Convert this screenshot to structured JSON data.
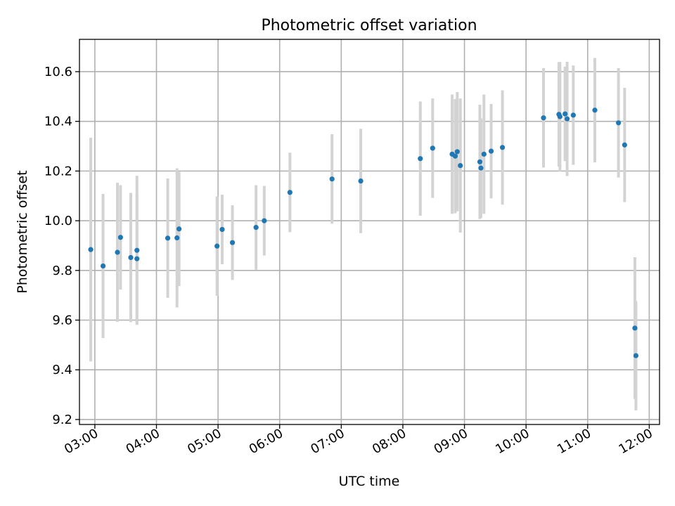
{
  "chart_data": {
    "type": "scatter",
    "title": "Photometric offset variation",
    "xlabel": "UTC time",
    "ylabel": "Photometric offset",
    "xlim": [
      "02:45",
      "12:10"
    ],
    "ylim": [
      9.18,
      10.73
    ],
    "x_ticks": [
      "03:00",
      "04:00",
      "05:00",
      "06:00",
      "07:00",
      "08:00",
      "09:00",
      "10:00",
      "11:00",
      "12:00"
    ],
    "y_ticks": [
      "9.2",
      "9.4",
      "9.6",
      "9.8",
      "10.0",
      "10.2",
      "10.4",
      "10.6"
    ],
    "grid": true,
    "marker_color": "#1f77b4",
    "errorbar_color": "#d3d3d3",
    "points": [
      {
        "x": "02:56",
        "y": 9.884,
        "err": 0.45
      },
      {
        "x": "03:08",
        "y": 9.818,
        "err": 0.29
      },
      {
        "x": "03:22",
        "y": 9.873,
        "err": 0.28
      },
      {
        "x": "03:25",
        "y": 9.933,
        "err": 0.21
      },
      {
        "x": "03:35",
        "y": 9.852,
        "err": 0.26
      },
      {
        "x": "03:41",
        "y": 9.847,
        "err": 0.26
      },
      {
        "x": "03:41",
        "y": 9.881,
        "err": 0.3
      },
      {
        "x": "04:11",
        "y": 9.93,
        "err": 0.24
      },
      {
        "x": "04:20",
        "y": 9.931,
        "err": 0.28
      },
      {
        "x": "04:22",
        "y": 9.967,
        "err": 0.23
      },
      {
        "x": "04:59",
        "y": 9.898,
        "err": 0.2
      },
      {
        "x": "05:04",
        "y": 9.965,
        "err": 0.14
      },
      {
        "x": "05:14",
        "y": 9.912,
        "err": 0.15
      },
      {
        "x": "05:37",
        "y": 9.973,
        "err": 0.17
      },
      {
        "x": "05:45",
        "y": 10.0,
        "err": 0.14
      },
      {
        "x": "06:10",
        "y": 10.114,
        "err": 0.16
      },
      {
        "x": "06:51",
        "y": 10.168,
        "err": 0.18
      },
      {
        "x": "07:19",
        "y": 10.16,
        "err": 0.21
      },
      {
        "x": "08:17",
        "y": 10.25,
        "err": 0.23
      },
      {
        "x": "08:29",
        "y": 10.292,
        "err": 0.2
      },
      {
        "x": "08:48",
        "y": 10.268,
        "err": 0.24
      },
      {
        "x": "08:51",
        "y": 10.26,
        "err": 0.23
      },
      {
        "x": "08:53",
        "y": 10.278,
        "err": 0.24
      },
      {
        "x": "08:56",
        "y": 10.222,
        "err": 0.27
      },
      {
        "x": "09:15",
        "y": 10.237,
        "err": 0.23
      },
      {
        "x": "09:16",
        "y": 10.212,
        "err": 0.2
      },
      {
        "x": "09:19",
        "y": 10.268,
        "err": 0.24
      },
      {
        "x": "09:26",
        "y": 10.28,
        "err": 0.19
      },
      {
        "x": "09:37",
        "y": 10.295,
        "err": 0.23
      },
      {
        "x": "10:17",
        "y": 10.414,
        "err": 0.2
      },
      {
        "x": "10:32",
        "y": 10.428,
        "err": 0.21
      },
      {
        "x": "10:33",
        "y": 10.419,
        "err": 0.22
      },
      {
        "x": "10:38",
        "y": 10.43,
        "err": 0.19
      },
      {
        "x": "10:40",
        "y": 10.41,
        "err": 0.23
      },
      {
        "x": "10:46",
        "y": 10.425,
        "err": 0.2
      },
      {
        "x": "11:07",
        "y": 10.445,
        "err": 0.21
      },
      {
        "x": "11:30",
        "y": 10.394,
        "err": 0.22
      },
      {
        "x": "11:36",
        "y": 10.305,
        "err": 0.23
      },
      {
        "x": "11:46",
        "y": 9.568,
        "err": 0.285
      },
      {
        "x": "11:47",
        "y": 9.457,
        "err": 0.22
      }
    ]
  }
}
